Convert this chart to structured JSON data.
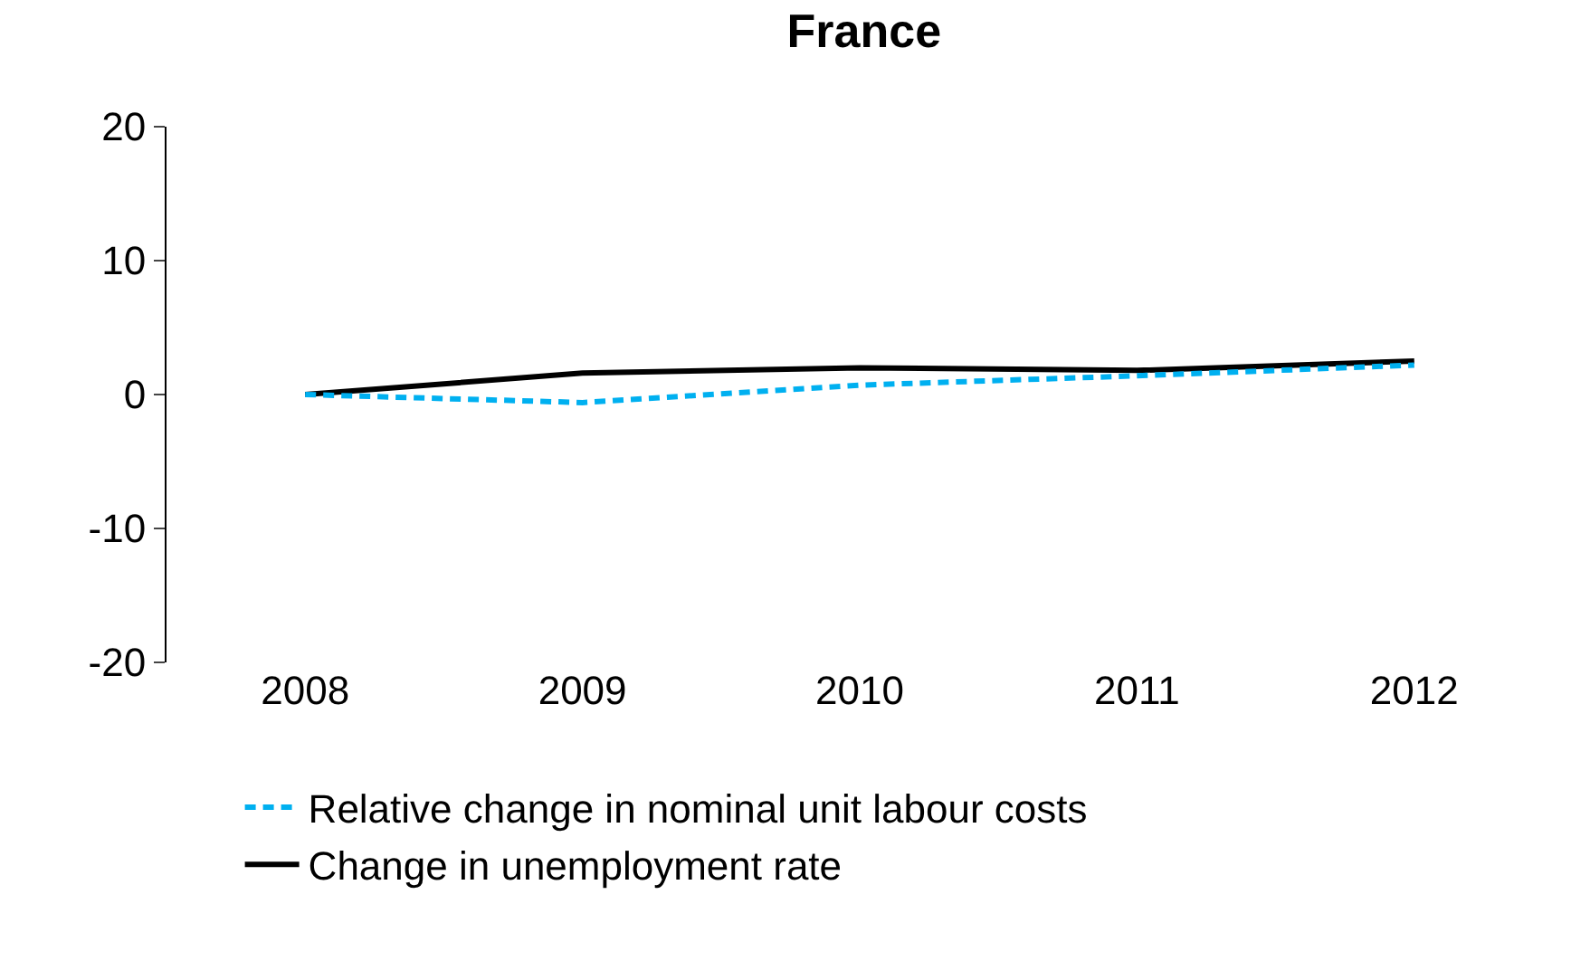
{
  "chart_data": {
    "type": "line",
    "title": "France",
    "categories": [
      "2008",
      "2009",
      "2010",
      "2011",
      "2012"
    ],
    "series": [
      {
        "name": "Relative change in nominal unit labour costs",
        "color": "#00b0f0",
        "line_style": "dashed",
        "values": [
          0,
          -0.6,
          0.7,
          1.4,
          2.2
        ]
      },
      {
        "name": "Change in unemployment rate",
        "color": "#000000",
        "line_style": "solid",
        "values": [
          0,
          1.6,
          2.0,
          1.8,
          2.5
        ]
      }
    ],
    "ylim": [
      -20,
      20
    ],
    "yticks": [
      -20,
      -10,
      0,
      10,
      20
    ],
    "grid": false,
    "legend": "bottom",
    "marker": "none"
  }
}
